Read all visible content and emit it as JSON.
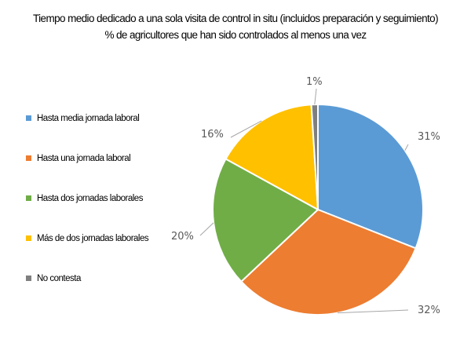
{
  "chart_data": {
    "type": "pie",
    "title": "Tiempo medio dedicado a una sola visita de control in situ (incluidos preparación y seguimiento)",
    "subtitle": "% de agricultores que han sido controlados al menos una vez",
    "legend_position": "left",
    "slices": [
      {
        "name": "Hasta media jornada laboral",
        "value": 31,
        "label": "31%",
        "color": "#5B9BD5"
      },
      {
        "name": "Hasta una jornada laboral",
        "value": 32,
        "label": "32%",
        "color": "#ED7D31"
      },
      {
        "name": "Hasta dos jornadas laborales",
        "value": 20,
        "label": "20%",
        "color": "#70AD47"
      },
      {
        "name": "Más de dos jornadas laborales",
        "value": 16,
        "label": "16%",
        "color": "#FFC000"
      },
      {
        "name": "No contesta",
        "value": 1,
        "label": "1%",
        "color": "#7F7F7F"
      }
    ]
  }
}
